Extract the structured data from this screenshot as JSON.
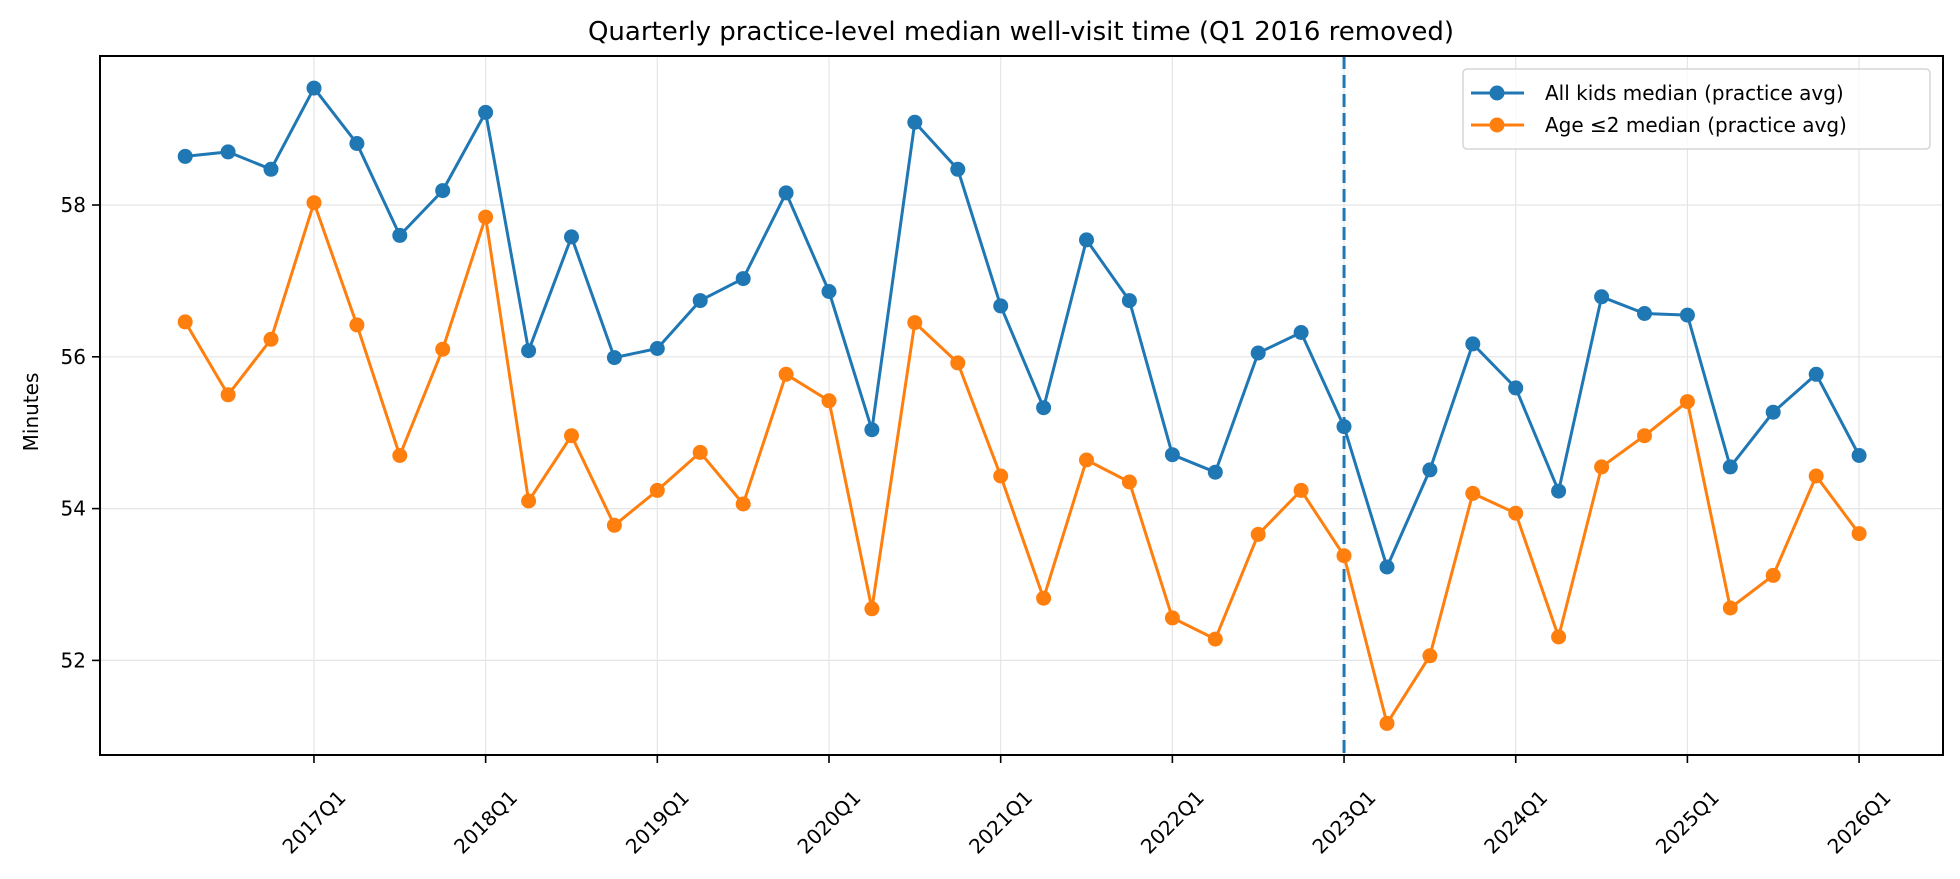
{
  "chart_data": {
    "type": "line",
    "title": "Quarterly practice-level median well-visit time (Q1 2016 removed)",
    "xlabel": "",
    "ylabel": "Minutes",
    "ylim": [
      50.75,
      59.95
    ],
    "yticks": [
      52,
      54,
      56,
      58
    ],
    "xtick_labels": [
      "2017Q1",
      "2018Q1",
      "2019Q1",
      "2020Q1",
      "2021Q1",
      "2022Q1",
      "2023Q1",
      "2024Q1",
      "2025Q1",
      "2026Q1"
    ],
    "grid": true,
    "legend_position": "upper right",
    "vline": {
      "x": "2023Q1",
      "style": "dashed",
      "color": "#1f77b4"
    },
    "x": [
      "2016Q2",
      "2016Q3",
      "2016Q4",
      "2017Q1",
      "2017Q2",
      "2017Q3",
      "2017Q4",
      "2018Q1",
      "2018Q2",
      "2018Q3",
      "2018Q4",
      "2019Q1",
      "2019Q2",
      "2019Q3",
      "2019Q4",
      "2020Q1",
      "2020Q2",
      "2020Q3",
      "2020Q4",
      "2021Q1",
      "2021Q2",
      "2021Q3",
      "2021Q4",
      "2022Q1",
      "2022Q2",
      "2022Q3",
      "2022Q4",
      "2023Q1",
      "2023Q2",
      "2023Q3",
      "2023Q4",
      "2024Q1",
      "2024Q2",
      "2024Q3",
      "2024Q4",
      "2025Q1",
      "2025Q2",
      "2025Q3",
      "2025Q4",
      "2026Q1"
    ],
    "series": [
      {
        "name": "All kids median (practice avg)",
        "color": "#1f77b4",
        "values": [
          58.64,
          58.7,
          58.47,
          59.54,
          58.81,
          57.6,
          58.19,
          59.22,
          56.08,
          57.58,
          55.99,
          56.11,
          56.74,
          57.03,
          58.16,
          56.86,
          55.04,
          59.09,
          58.47,
          56.67,
          55.33,
          57.54,
          56.74,
          54.71,
          54.48,
          56.05,
          56.32,
          55.08,
          53.23,
          54.51,
          56.17,
          55.59,
          54.23,
          56.79,
          56.57,
          56.55,
          54.55,
          55.27,
          55.77,
          54.7
        ]
      },
      {
        "name": "Age ≤2 median (practice avg)",
        "color": "#ff7f0e",
        "values": [
          56.46,
          55.5,
          56.23,
          58.03,
          56.42,
          54.7,
          56.1,
          57.84,
          54.1,
          54.96,
          53.78,
          54.24,
          54.74,
          54.06,
          55.77,
          55.42,
          52.68,
          56.45,
          55.92,
          54.43,
          52.82,
          54.64,
          54.35,
          52.56,
          52.28,
          53.66,
          54.24,
          53.38,
          51.17,
          52.06,
          54.2,
          53.94,
          52.31,
          54.55,
          54.96,
          55.41,
          52.69,
          53.12,
          54.43,
          53.67
        ]
      }
    ]
  },
  "legend": {
    "items": [
      {
        "label": "All kids median (practice avg)",
        "color": "#1f77b4"
      },
      {
        "label": "Age ≤2 median (practice avg)",
        "color": "#ff7f0e"
      }
    ]
  }
}
